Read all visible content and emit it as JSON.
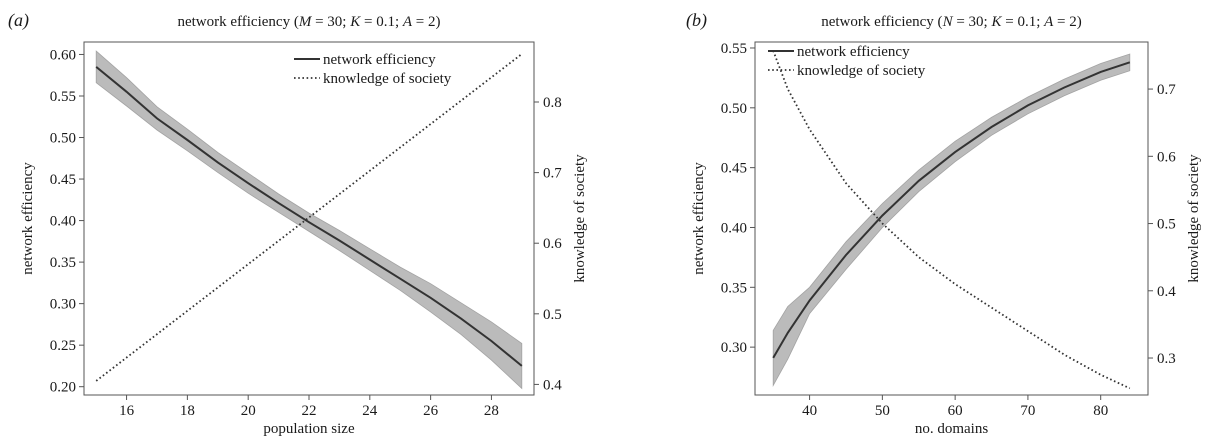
{
  "chart_data": [
    {
      "type": "line",
      "panel_label": "(a)",
      "title": "network efficiency (M = 30; K = 0.1; A = 2)",
      "xlabel": "population size",
      "ylabel": "network efficiency",
      "y2label": "knowledge of society",
      "xlim": [
        14.6,
        29.4
      ],
      "ylim": [
        0.19,
        0.615
      ],
      "y2lim": [
        0.385,
        0.885
      ],
      "xticks": [
        16,
        18,
        20,
        22,
        24,
        26,
        28
      ],
      "xtick_labels": [
        "16",
        "18",
        "20",
        "22",
        "24",
        "26",
        "28"
      ],
      "yticks": [
        0.2,
        0.25,
        0.3,
        0.35,
        0.4,
        0.45,
        0.5,
        0.55,
        0.6
      ],
      "ytick_labels": [
        "0.20",
        "0.25",
        "0.30",
        "0.35",
        "0.40",
        "0.45",
        "0.50",
        "0.55",
        "0.60"
      ],
      "y2ticks": [
        0.4,
        0.5,
        0.6,
        0.7,
        0.8
      ],
      "y2tick_labels": [
        "0.4",
        "0.5",
        "0.6",
        "0.7",
        "0.8"
      ],
      "legend_position": "top-right",
      "series": [
        {
          "name": "network efficiency",
          "axis": "left",
          "style": "solid",
          "color": "#333333",
          "band_color": "#b4b4b4",
          "x": [
            15,
            16,
            17,
            18,
            19,
            20,
            21,
            22,
            23,
            24,
            25,
            26,
            27,
            28,
            29
          ],
          "values": [
            0.585,
            0.555,
            0.523,
            0.497,
            0.47,
            0.445,
            0.421,
            0.398,
            0.376,
            0.353,
            0.33,
            0.307,
            0.282,
            0.255,
            0.225
          ],
          "lower": [
            0.566,
            0.538,
            0.509,
            0.484,
            0.458,
            0.433,
            0.41,
            0.387,
            0.364,
            0.34,
            0.316,
            0.29,
            0.263,
            0.232,
            0.198
          ],
          "upper": [
            0.604,
            0.572,
            0.537,
            0.51,
            0.482,
            0.457,
            0.432,
            0.409,
            0.388,
            0.366,
            0.344,
            0.324,
            0.301,
            0.278,
            0.252
          ]
        },
        {
          "name": "knowledge of society",
          "axis": "right",
          "style": "dotted",
          "color": "#333333",
          "x": [
            15,
            29
          ],
          "values": [
            0.405,
            0.868
          ]
        }
      ]
    },
    {
      "type": "line",
      "panel_label": "(b)",
      "title": "network efficiency (N = 30; K = 0.1; A = 2)",
      "xlabel": "no. domains",
      "ylabel": "network efficiency",
      "y2label": "knowledge of society",
      "xlim": [
        32.5,
        86.5
      ],
      "ylim": [
        0.26,
        0.555
      ],
      "y2lim": [
        0.245,
        0.77
      ],
      "xticks": [
        40,
        50,
        60,
        70,
        80
      ],
      "xtick_labels": [
        "40",
        "50",
        "60",
        "70",
        "80"
      ],
      "yticks": [
        0.3,
        0.35,
        0.4,
        0.45,
        0.5,
        0.55
      ],
      "ytick_labels": [
        "0.30",
        "0.35",
        "0.40",
        "0.45",
        "0.50",
        "0.55"
      ],
      "y2ticks": [
        0.3,
        0.4,
        0.5,
        0.6,
        0.7
      ],
      "y2tick_labels": [
        "0.3",
        "0.4",
        "0.5",
        "0.6",
        "0.7"
      ],
      "legend_position": "top-left",
      "series": [
        {
          "name": "network efficiency",
          "axis": "left",
          "style": "solid",
          "color": "#333333",
          "band_color": "#b4b4b4",
          "x": [
            35,
            37,
            40,
            45,
            50,
            55,
            60,
            65,
            70,
            75,
            80,
            84
          ],
          "values": [
            0.291,
            0.312,
            0.339,
            0.377,
            0.41,
            0.439,
            0.463,
            0.484,
            0.502,
            0.517,
            0.53,
            0.538
          ],
          "lower": [
            0.268,
            0.29,
            0.328,
            0.365,
            0.4,
            0.43,
            0.455,
            0.477,
            0.495,
            0.51,
            0.523,
            0.531
          ],
          "upper": [
            0.314,
            0.334,
            0.35,
            0.388,
            0.42,
            0.448,
            0.472,
            0.492,
            0.509,
            0.524,
            0.537,
            0.545
          ]
        },
        {
          "name": "knowledge of society",
          "axis": "right",
          "style": "dotted",
          "color": "#333333",
          "x": [
            35,
            37,
            40,
            45,
            50,
            55,
            60,
            65,
            70,
            75,
            80,
            84
          ],
          "values": [
            0.757,
            0.7,
            0.64,
            0.56,
            0.5,
            0.45,
            0.41,
            0.375,
            0.34,
            0.305,
            0.275,
            0.255
          ]
        }
      ]
    }
  ]
}
